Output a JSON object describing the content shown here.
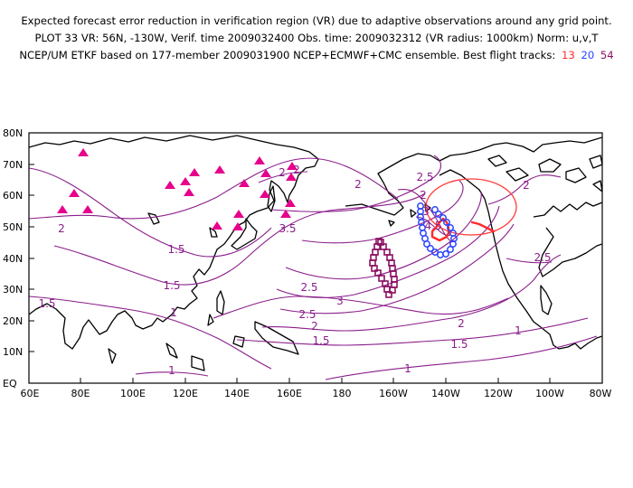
{
  "header": {
    "line1": "Expected forecast error reduction in verification region (VR) due to adaptive observations around any grid point.",
    "line2": "PLOT 33 VR: 56N, -130W, Verif. time 2009032400 Obs. time: 2009032312 (VR radius: 1000km) Norm: u,v,T",
    "line3": "NCEP/UM ETKF based on 177-member 2009031900 NCEP+ECMWF+CMC ensemble. Best flight tracks:",
    "tracks": [
      {
        "label": "13",
        "color": "#ff2a2a"
      },
      {
        "label": "20",
        "color": "#2a44ff"
      },
      {
        "label": "54",
        "color": "#8a1060"
      }
    ]
  },
  "map": {
    "lat_labels": [
      "80N",
      "70N",
      "60N",
      "50N",
      "40N",
      "30N",
      "20N",
      "10N",
      "EQ"
    ],
    "lon_labels": [
      "60E",
      "80E",
      "100E",
      "120E",
      "140E",
      "160E",
      "180",
      "160W",
      "140W",
      "120W",
      "100W",
      "80W"
    ],
    "contour_labels": [
      "4.5",
      "3",
      "2.5",
      "2",
      "2",
      "2",
      "2",
      "2.5",
      "3.5",
      "3",
      "2.5",
      "2",
      "1.5",
      "1.5",
      "1.5",
      "1.5",
      "1",
      "1",
      "2",
      "1.5",
      "1",
      "2",
      "2.5",
      "1",
      "1",
      "1",
      "2"
    ],
    "colors": {
      "contour": "#8a1e8a",
      "triangle": "#e6008c",
      "coast": "#000000"
    }
  }
}
